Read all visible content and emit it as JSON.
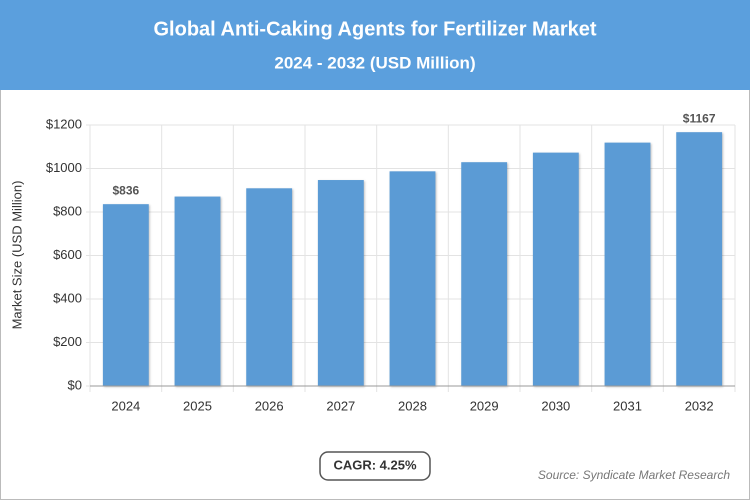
{
  "chart_data": {
    "type": "bar",
    "title": "Global Anti-Caking Agents for Fertilizer Market",
    "subtitle": "2024 - 2032 (USD Million)",
    "y_label": "Market Size (USD Million)",
    "categories": [
      "2024",
      "2025",
      "2026",
      "2027",
      "2028",
      "2029",
      "2030",
      "2031",
      "2032"
    ],
    "values": [
      836,
      871,
      909,
      947,
      987,
      1029,
      1073,
      1119,
      1167
    ],
    "value_labels": [
      "$836",
      null,
      null,
      null,
      null,
      null,
      null,
      null,
      "$1167"
    ],
    "color": "#5b9bd5",
    "ylim": [
      0,
      1200
    ],
    "yticks": [
      {
        "value": 0,
        "label": "$0"
      },
      {
        "value": 200,
        "label": "$200"
      },
      {
        "value": 400,
        "label": "$400"
      },
      {
        "value": 600,
        "label": "$600"
      },
      {
        "value": 800,
        "label": "$800"
      },
      {
        "value": 1000,
        "label": "$1000"
      },
      {
        "value": 1200,
        "label": "$1200"
      }
    ],
    "grid": true,
    "annotation": "CAGR: 4.25%",
    "source": "Source: Syndicate Market Research"
  }
}
